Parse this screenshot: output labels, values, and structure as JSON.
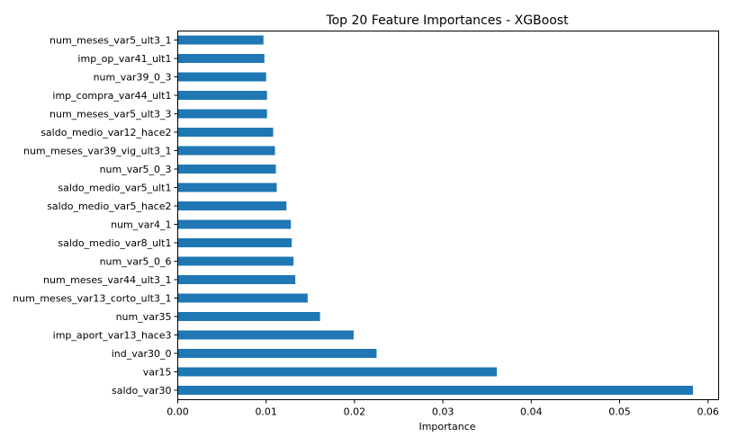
{
  "chart_data": {
    "type": "bar",
    "orientation": "horizontal",
    "title": "Top 20 Feature Importances - XGBoost",
    "xlabel": "Importance",
    "ylabel": "",
    "xlim": [
      0,
      0.0613
    ],
    "xticks": [
      0.0,
      0.01,
      0.02,
      0.03,
      0.04,
      0.05,
      0.06
    ],
    "xtick_labels": [
      "0.00",
      "0.01",
      "0.02",
      "0.03",
      "0.04",
      "0.05",
      "0.06"
    ],
    "grid": false,
    "legend": "none",
    "bar_color": "#1f77b4",
    "categories": [
      "num_meses_var5_ult3_1",
      "imp_op_var41_ult1",
      "num_var39_0_3",
      "imp_compra_var44_ult1",
      "num_meses_var5_ult3_3",
      "saldo_medio_var12_hace2",
      "num_meses_var39_vig_ult3_1",
      "num_var5_0_3",
      "saldo_medio_var5_ult1",
      "saldo_medio_var5_hace2",
      "num_var4_1",
      "saldo_medio_var8_ult1",
      "num_var5_0_6",
      "num_meses_var44_ult3_1",
      "num_meses_var13_corto_ult3_1",
      "num_var35",
      "imp_aport_var13_hace3",
      "ind_var30_0",
      "var15",
      "saldo_var30"
    ],
    "values": [
      0.0097,
      0.0098,
      0.01,
      0.0101,
      0.0101,
      0.0108,
      0.011,
      0.0111,
      0.0112,
      0.0123,
      0.0128,
      0.0129,
      0.0131,
      0.0133,
      0.0147,
      0.0161,
      0.0199,
      0.0225,
      0.0361,
      0.0583
    ]
  }
}
